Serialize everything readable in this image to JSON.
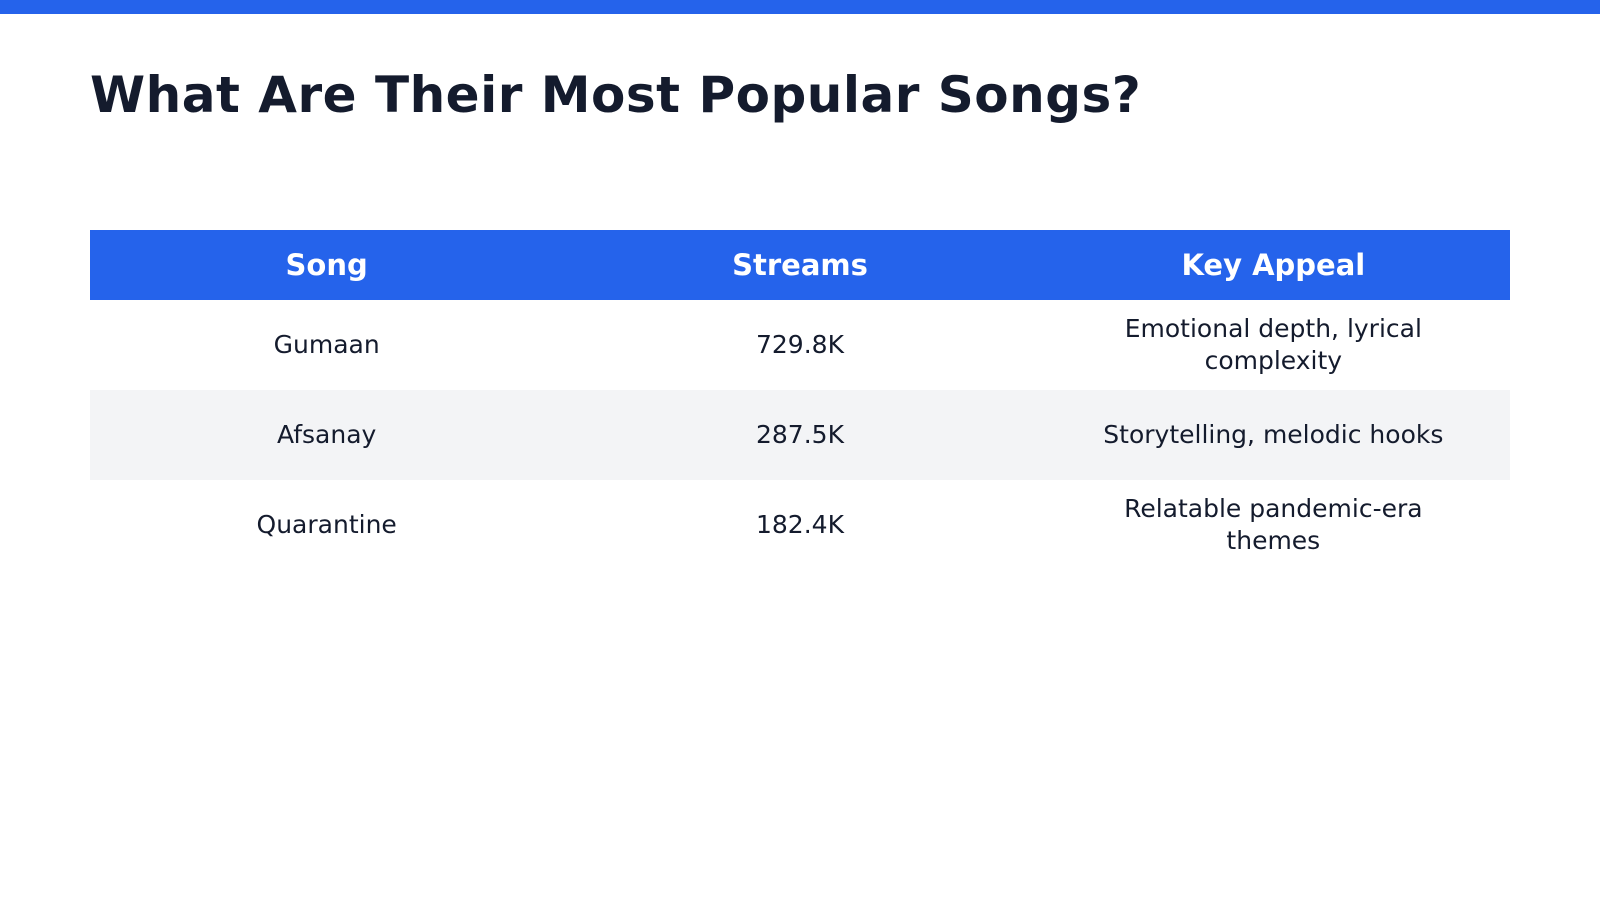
{
  "header": {
    "title": "What Are Their Most Popular Songs?"
  },
  "table": {
    "columns": [
      "Song",
      "Streams",
      "Key Appeal"
    ],
    "rows": [
      [
        "Gumaan",
        "729.8K",
        "Emotional depth, lyrical complexity"
      ],
      [
        "Afsanay",
        "287.5K",
        "Storytelling, melodic hooks"
      ],
      [
        "Quarantine",
        "182.4K",
        "Relatable pandemic-era themes"
      ]
    ]
  }
}
